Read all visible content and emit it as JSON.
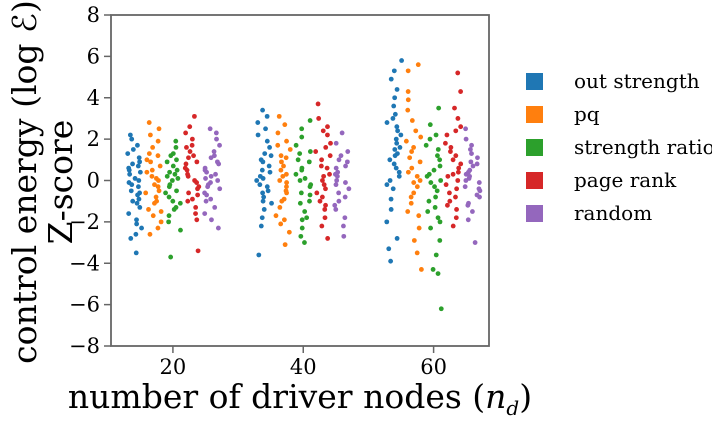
{
  "chart_data": {
    "type": "scatter",
    "xlabel": "number of driver nodes (n_d)",
    "xlabel_main": "number of driver nodes ",
    "xlabel_paren_open": "(",
    "xlabel_var": "n",
    "xlabel_sub": "d",
    "xlabel_paren_close": ")",
    "ylabel_line1": "control energy (log ℰ)",
    "ylabel_line2": "Z-score",
    "xlim": [
      10.5,
      68.5
    ],
    "ylim": [
      -8,
      8
    ],
    "xticks": [
      20,
      40,
      60
    ],
    "yticks": [
      -8,
      -6,
      -4,
      -2,
      0,
      2,
      4,
      6,
      8
    ],
    "legend_position": "right, outside plot",
    "groups": [
      20,
      40,
      60
    ],
    "series": [
      {
        "name": "out strength",
        "color": "#1f77b4",
        "offset": -6,
        "groups": [
          {
            "x": 20,
            "y": [
              -3.5,
              -2.8,
              -2.6,
              -2.3,
              -2.1,
              -1.9,
              -1.6,
              -1.3,
              -1.1,
              -0.9,
              -0.7,
              -0.5,
              -0.3,
              -0.1,
              0.1,
              0.3,
              0.5,
              0.7,
              0.9,
              1.1,
              1.3,
              1.5,
              1.7,
              2.0,
              2.2,
              -0.2,
              0.4,
              -0.6,
              0.8,
              -1.0,
              0.0,
              0.6
            ]
          },
          {
            "x": 40,
            "y": [
              -3.6,
              -2.2,
              -1.8,
              -1.4,
              -1.1,
              -0.8,
              -0.5,
              -0.2,
              0.1,
              0.4,
              0.7,
              1.0,
              1.3,
              1.6,
              1.9,
              2.2,
              2.5,
              2.8,
              3.1,
              3.4,
              -0.3,
              0.2,
              0.5,
              -0.6,
              0.9,
              1.2,
              -1.0,
              0.0
            ]
          },
          {
            "x": 60,
            "y": [
              -3.9,
              -3.3,
              -2.8,
              -2.0,
              -1.4,
              -0.9,
              -0.4,
              0.0,
              0.4,
              0.8,
              1.2,
              1.6,
              2.0,
              2.4,
              2.8,
              3.2,
              3.6,
              4.0,
              4.4,
              4.9,
              5.3,
              5.8,
              1.0,
              1.5,
              2.2,
              0.6,
              -0.2,
              1.8,
              2.6,
              3.0,
              0.2,
              1.3
            ]
          }
        ]
      },
      {
        "name": "pq",
        "color": "#ff7f0e",
        "offset": -3,
        "groups": [
          {
            "x": 20,
            "y": [
              -2.6,
              -2.3,
              -2.0,
              -1.7,
              -1.4,
              -1.1,
              -0.8,
              -0.5,
              -0.2,
              0.1,
              0.4,
              0.7,
              1.0,
              1.3,
              1.6,
              1.9,
              2.2,
              2.5,
              2.8,
              -0.3,
              0.2,
              0.5,
              -0.6,
              0.9,
              -1.0,
              0.0,
              1.2,
              -1.5
            ]
          },
          {
            "x": 40,
            "y": [
              -3.1,
              -2.5,
              -2.1,
              -1.7,
              -1.3,
              -0.9,
              -0.5,
              -0.1,
              0.3,
              0.7,
              1.1,
              1.5,
              1.9,
              2.3,
              2.7,
              3.1,
              -0.3,
              0.2,
              0.5,
              -0.6,
              0.9,
              -1.0,
              0.0,
              1.2,
              1.7,
              -1.9
            ]
          },
          {
            "x": 60,
            "y": [
              -4.3,
              -3.5,
              -2.9,
              -2.3,
              -1.7,
              -1.1,
              -0.6,
              -0.1,
              0.4,
              0.9,
              1.4,
              1.9,
              2.4,
              2.9,
              3.4,
              3.9,
              4.3,
              5.3,
              5.6,
              -0.3,
              0.2,
              0.6,
              1.1,
              1.6,
              2.1,
              -0.8,
              -1.5,
              0.0
            ]
          }
        ]
      },
      {
        "name": "strength ratio",
        "color": "#2ca02c",
        "offset": 0,
        "groups": [
          {
            "x": 20,
            "y": [
              -3.7,
              -2.4,
              -2.0,
              -1.7,
              -1.4,
              -1.1,
              -0.8,
              -0.5,
              -0.2,
              0.1,
              0.4,
              0.7,
              1.0,
              1.3,
              1.6,
              1.9,
              -0.3,
              0.2,
              0.5,
              -0.6,
              0.9,
              -1.0,
              0.0,
              1.2,
              -1.3,
              0.3
            ]
          },
          {
            "x": 40,
            "y": [
              -3.0,
              -2.7,
              -2.3,
              -1.9,
              -1.5,
              -1.1,
              -0.7,
              -0.3,
              0.1,
              0.5,
              0.9,
              1.3,
              1.7,
              2.1,
              2.5,
              2.9,
              -0.2,
              0.3,
              0.6,
              -0.6,
              1.0,
              -1.0,
              0.0,
              1.4,
              -1.8
            ]
          },
          {
            "x": 60,
            "y": [
              -6.2,
              -4.5,
              -4.3,
              -3.6,
              -2.9,
              -2.3,
              -1.8,
              -1.3,
              -0.8,
              -0.3,
              0.2,
              0.7,
              1.2,
              1.7,
              2.2,
              2.7,
              3.5,
              -0.5,
              0.0,
              0.5,
              1.0,
              -1.0,
              -1.5,
              0.3,
              -2.0,
              1.5,
              2.0,
              -0.1
            ]
          }
        ]
      },
      {
        "name": "page rank",
        "color": "#d62728",
        "offset": 3,
        "groups": [
          {
            "x": 20,
            "y": [
              -3.4,
              -1.9,
              -1.6,
              -1.3,
              -1.0,
              -0.7,
              -0.4,
              -0.1,
              0.2,
              0.5,
              0.8,
              1.1,
              1.4,
              1.7,
              2.0,
              2.3,
              2.6,
              3.1,
              -0.3,
              0.3,
              0.6,
              -0.6,
              0.9,
              -0.9,
              0.0,
              1.2,
              1.6
            ]
          },
          {
            "x": 40,
            "y": [
              -2.8,
              -2.2,
              -1.8,
              -1.4,
              -1.0,
              -0.6,
              -0.2,
              0.2,
              0.6,
              1.0,
              1.4,
              1.8,
              2.2,
              2.6,
              3.0,
              3.7,
              -0.4,
              0.3,
              0.7,
              -0.8,
              1.2,
              -1.2,
              0.0,
              1.6,
              2.4
            ]
          },
          {
            "x": 60,
            "y": [
              -2.2,
              -1.8,
              -1.4,
              -1.0,
              -0.6,
              -0.2,
              0.2,
              0.6,
              1.0,
              1.4,
              1.8,
              2.2,
              2.6,
              3.0,
              3.5,
              4.3,
              5.2,
              -0.4,
              0.4,
              0.8,
              -0.8,
              1.2,
              -1.2,
              0.0,
              1.6,
              2.4,
              0.3
            ]
          }
        ]
      },
      {
        "name": "random",
        "color": "#9467bd",
        "offset": 6,
        "groups": [
          {
            "x": 20,
            "y": [
              -2.3,
              -1.9,
              -1.6,
              -1.3,
              -1.0,
              -0.7,
              -0.4,
              -0.1,
              0.2,
              0.5,
              0.8,
              1.1,
              1.4,
              1.7,
              2.0,
              2.3,
              2.5,
              -0.3,
              0.3,
              0.6,
              -0.6,
              0.9,
              -0.9,
              0.0,
              1.2,
              -0.2,
              0.4,
              0.1
            ]
          },
          {
            "x": 40,
            "y": [
              -2.7,
              -2.2,
              -1.8,
              -1.4,
              -1.0,
              -0.6,
              -0.2,
              0.2,
              0.6,
              1.0,
              1.4,
              1.8,
              2.3,
              -0.4,
              0.3,
              0.7,
              -0.8,
              1.2,
              -1.2,
              0.0,
              0.4,
              -0.1,
              0.9
            ]
          },
          {
            "x": 60,
            "y": [
              -3.0,
              -1.9,
              -1.5,
              -1.1,
              -0.7,
              -0.3,
              0.1,
              0.5,
              0.9,
              1.3,
              1.7,
              2.0,
              2.5,
              -0.4,
              0.3,
              0.7,
              -0.8,
              1.1,
              -1.2,
              0.0,
              0.4,
              -0.1,
              0.8,
              1.5,
              -0.5,
              0.2
            ]
          }
        ]
      }
    ]
  }
}
